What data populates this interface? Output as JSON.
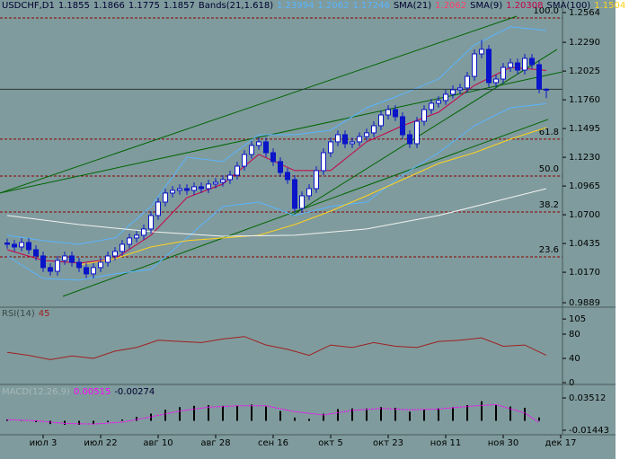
{
  "chart_data": [
    {
      "type": "candlestick",
      "symbol": "USDCHF,D1",
      "color": "#0a14c8",
      "xlim": [
        -1,
        77
      ],
      "ylim": [
        0.9856,
        1.268
      ],
      "yticks": [
        1.2564,
        {
          "value": 1.229,
          "label": "1.2290"
        },
        1.2025,
        {
          "value": 1.176,
          "label": "1.1760"
        },
        1.1495,
        {
          "value": 1.123,
          "label": "1.1230"
        },
        1.0965,
        {
          "value": 1.07,
          "label": "1.0700"
        },
        1.0435,
        {
          "value": 1.017,
          "label": "1.0170"
        },
        0.9889
      ],
      "xticks": [
        {
          "value": 5,
          "label": "июл 3"
        },
        {
          "value": 13,
          "label": "июл 22"
        },
        {
          "value": 21,
          "label": "авг 10"
        },
        {
          "value": 29,
          "label": "авг 28"
        },
        {
          "value": 37,
          "label": "сен 16"
        },
        {
          "value": 45,
          "label": "окт 5"
        },
        {
          "value": 53,
          "label": "окт 23"
        },
        {
          "value": 61,
          "label": "ноя 11"
        },
        {
          "value": 69,
          "label": "ноя 30"
        },
        {
          "value": 77,
          "label": "дек 17"
        }
      ],
      "open": [
        1.044,
        1.0428,
        1.0403,
        1.0444,
        1.0378,
        1.032,
        1.0213,
        1.0179,
        1.0279,
        1.032,
        1.0262,
        1.0213,
        1.0155,
        1.0213,
        1.0262,
        1.032,
        1.0362,
        1.0428,
        1.0486,
        1.0511,
        1.0569,
        1.0693,
        1.0817,
        1.09,
        1.0925,
        1.0941,
        1.0925,
        1.0958,
        1.0941,
        1.0983,
        1.0999,
        1.1024,
        1.1065,
        1.1148,
        1.1256,
        1.1339,
        1.1372,
        1.1272,
        1.119,
        1.109,
        1.1024,
        1.0759,
        1.0875,
        1.0941,
        1.1107,
        1.1272,
        1.1372,
        1.1438,
        1.1355,
        1.1372,
        1.1421,
        1.1455,
        1.1521,
        1.162,
        1.167,
        1.1604,
        1.1438,
        1.1355,
        1.1562,
        1.167,
        1.1728,
        1.1753,
        1.1811,
        1.1852,
        1.1869,
        1.1976,
        1.2183,
        1.2225,
        1.1918,
        1.1951,
        1.2059,
        1.21,
        1.2034,
        1.2142,
        1.2084,
        1.1855
      ],
      "high": [
        1.048,
        1.0468,
        1.0484,
        1.0484,
        1.0418,
        1.036,
        1.0253,
        1.0319,
        1.036,
        1.036,
        1.0302,
        1.0253,
        1.0253,
        1.0302,
        1.036,
        1.0402,
        1.0468,
        1.0526,
        1.0551,
        1.0609,
        1.0733,
        1.0857,
        1.094,
        1.0965,
        1.0981,
        1.0981,
        1.0998,
        1.0998,
        1.1023,
        1.1039,
        1.1064,
        1.1105,
        1.1188,
        1.1296,
        1.1379,
        1.1412,
        1.1412,
        1.1312,
        1.123,
        1.113,
        1.1064,
        1.0915,
        1.0981,
        1.1147,
        1.1312,
        1.1412,
        1.1478,
        1.1478,
        1.1412,
        1.1461,
        1.1495,
        1.1561,
        1.166,
        1.171,
        1.171,
        1.1644,
        1.1478,
        1.1602,
        1.171,
        1.1768,
        1.1793,
        1.1851,
        1.1892,
        1.1909,
        1.2016,
        1.2223,
        1.231,
        1.2265,
        1.1991,
        1.2099,
        1.214,
        1.214,
        1.2182,
        1.2182,
        1.2124,
        1.1866
      ],
      "low": [
        1.0388,
        1.0363,
        1.0363,
        1.0338,
        1.028,
        1.0173,
        1.0139,
        1.0139,
        1.0239,
        1.0222,
        1.0173,
        1.0115,
        1.0115,
        1.0173,
        1.0222,
        1.028,
        1.0322,
        1.0388,
        1.0446,
        1.0471,
        1.0529,
        1.0653,
        1.0777,
        1.086,
        1.0885,
        1.0885,
        1.0885,
        1.0901,
        1.0901,
        1.0943,
        1.0959,
        1.0984,
        1.1025,
        1.1108,
        1.1216,
        1.1299,
        1.1232,
        1.115,
        1.105,
        1.0984,
        1.0719,
        1.0719,
        1.0835,
        1.0901,
        1.1067,
        1.1232,
        1.1332,
        1.1315,
        1.1315,
        1.1332,
        1.1381,
        1.1415,
        1.1481,
        1.158,
        1.1564,
        1.1398,
        1.1315,
        1.1315,
        1.1522,
        1.163,
        1.1688,
        1.1713,
        1.1771,
        1.1812,
        1.1829,
        1.1936,
        1.2143,
        1.1878,
        1.1878,
        1.1911,
        1.2019,
        1.1994,
        1.1994,
        1.2044,
        1.182,
        1.1775
      ],
      "close": [
        1.0428,
        1.0403,
        1.0444,
        1.0378,
        1.032,
        1.0213,
        1.0179,
        1.0279,
        1.032,
        1.0262,
        1.0213,
        1.0155,
        1.0213,
        1.0262,
        1.032,
        1.0362,
        1.0428,
        1.0486,
        1.0511,
        1.0569,
        1.0693,
        1.0817,
        1.09,
        1.0925,
        1.0941,
        1.0925,
        1.0958,
        1.0941,
        1.0983,
        1.0999,
        1.1024,
        1.1065,
        1.1148,
        1.1256,
        1.1339,
        1.1372,
        1.1272,
        1.119,
        1.109,
        1.1024,
        1.0759,
        1.0875,
        1.0941,
        1.1107,
        1.1272,
        1.1372,
        1.1438,
        1.1355,
        1.1372,
        1.1421,
        1.1455,
        1.1521,
        1.162,
        1.167,
        1.1604,
        1.1438,
        1.1355,
        1.1562,
        1.167,
        1.1728,
        1.1753,
        1.1811,
        1.1852,
        1.1869,
        1.1976,
        1.2183,
        1.2225,
        1.1918,
        1.1951,
        1.2059,
        1.21,
        1.2034,
        1.2142,
        1.2084,
        1.186,
        1.1857
      ],
      "overlays": [
        {
          "name": "Bands(21,1.618)",
          "color": "#5ab4ff",
          "x": [
            0,
            5,
            10,
            15,
            20,
            25,
            30,
            35,
            40,
            45,
            50,
            55,
            60,
            65,
            70,
            75
          ],
          "upper": [
            1.0511,
            1.0461,
            1.0428,
            1.0486,
            1.0776,
            1.1231,
            1.119,
            1.1438,
            1.1438,
            1.1479,
            1.1686,
            1.1811,
            1.1951,
            1.2266,
            1.2432,
            1.23994
          ],
          "lower": [
            1.032,
            1.0113,
            1.0097,
            1.0155,
            1.0196,
            1.0486,
            1.0776,
            1.0817,
            1.0693,
            1.0776,
            1.0817,
            1.1065,
            1.1272,
            1.1521,
            1.1686,
            1.17246
          ]
        },
        {
          "name": "SMA(21)",
          "color": "#ff4070",
          "last": 1.2062
        },
        {
          "name": "SMA(9)",
          "color": "#c8004a",
          "x": [
            0,
            5,
            10,
            15,
            20,
            25,
            30,
            35,
            40,
            45,
            50,
            55,
            60,
            65,
            70,
            75
          ],
          "values": [
            1.0378,
            1.0279,
            1.0254,
            1.0295,
            1.0511,
            1.0858,
            1.0983,
            1.1256,
            1.1107,
            1.1107,
            1.1372,
            1.1521,
            1.1645,
            1.1893,
            1.2059,
            1.20308
          ]
        },
        {
          "name": "SMA(100)",
          "color": "#ffd21e",
          "x": [
            10,
            15,
            20,
            25,
            30,
            35,
            40,
            45,
            50,
            55,
            60,
            65,
            70,
            75
          ],
          "values": [
            1.0237,
            1.0295,
            1.0403,
            1.0461,
            1.0486,
            1.0511,
            1.061,
            1.0734,
            1.0875,
            1.1024,
            1.1173,
            1.1272,
            1.1397,
            1.1504
          ]
        },
        {
          "color": "#f2f2f2",
          "x": [
            0,
            10,
            20,
            30,
            40,
            50,
            60,
            70,
            75
          ],
          "values": [
            1.0693,
            1.061,
            1.0544,
            1.0502,
            1.0511,
            1.0569,
            1.0693,
            1.0858,
            1.0941
          ]
        }
      ],
      "fibo_color": "#8b0000",
      "fibo": [
        {
          "level": "100.0",
          "value": 1.2514
        },
        {
          "level": "61.8",
          "value": 1.1397
        },
        {
          "level": "50.0",
          "value": 1.1057
        },
        {
          "level": "38.2",
          "value": 1.0726
        },
        {
          "level": "23.6",
          "value": 1.0312
        }
      ],
      "trend_color": "#006400",
      "trendlines": [
        {
          "x": [
            -1,
            70.9
          ],
          "y": [
            1.09,
            1.2531
          ]
        },
        {
          "x": [
            -1,
            77.25
          ],
          "y": [
            1.09,
            1.2018
          ]
        },
        {
          "x": [
            7.75,
            75.25
          ],
          "y": [
            0.9948,
            1.1579
          ]
        },
        {
          "x": [
            39.6,
            76.5
          ],
          "y": [
            1.0693,
            1.2225
          ]
        }
      ]
    },
    {
      "type": "line",
      "name": "RSI(14)",
      "color": "#a02020",
      "ylim": [
        0,
        120
      ],
      "yticks": [
        105,
        80,
        40,
        0
      ],
      "x": [
        0,
        3,
        6,
        9,
        12,
        15,
        18,
        21,
        24,
        27,
        30,
        33,
        36,
        39,
        42,
        45,
        48,
        51,
        54,
        57,
        60,
        63,
        66,
        69,
        72,
        75
      ],
      "values": [
        50,
        45,
        38,
        44,
        40,
        52,
        58,
        70,
        68,
        66,
        72,
        76,
        62,
        55,
        45,
        62,
        58,
        66,
        60,
        58,
        68,
        70,
        74,
        60,
        62,
        45
      ]
    },
    {
      "type": "macd",
      "name": "MACD(12,26,9)",
      "color": "#000000",
      "signal_color": "#ff00ff",
      "ylim": [
        -0.0186,
        0.0503
      ],
      "yticks": [
        0.03512,
        -0.01443
      ],
      "x": [
        0,
        2,
        4,
        6,
        8,
        10,
        12,
        14,
        16,
        18,
        20,
        22,
        24,
        26,
        28,
        30,
        32,
        34,
        36,
        38,
        40,
        42,
        44,
        46,
        48,
        50,
        52,
        54,
        56,
        58,
        60,
        62,
        64,
        66,
        68,
        70,
        72,
        74
      ],
      "values": [
        0.002,
        0.001,
        -0.002,
        -0.005,
        -0.006,
        -0.006,
        -0.005,
        -0.002,
        0.002,
        0.006,
        0.011,
        0.017,
        0.021,
        0.023,
        0.024,
        0.023,
        0.023,
        0.025,
        0.022,
        0.015,
        0.005,
        0.003,
        0.011,
        0.018,
        0.019,
        0.019,
        0.021,
        0.02,
        0.014,
        0.017,
        0.019,
        0.021,
        0.024,
        0.03,
        0.024,
        0.022,
        0.02,
        0.00515
      ],
      "signal_x": [
        0,
        4,
        8,
        12,
        16,
        20,
        24,
        28,
        32,
        36,
        40,
        44,
        48,
        52,
        56,
        60,
        64,
        68,
        72,
        74
      ],
      "signal": [
        0.002,
        0,
        -0.004,
        -0.005,
        -0.002,
        0.006,
        0.015,
        0.021,
        0.023,
        0.023,
        0.014,
        0.009,
        0.016,
        0.019,
        0.017,
        0.018,
        0.022,
        0.025,
        0.012,
        -0.00274
      ]
    }
  ]
}
